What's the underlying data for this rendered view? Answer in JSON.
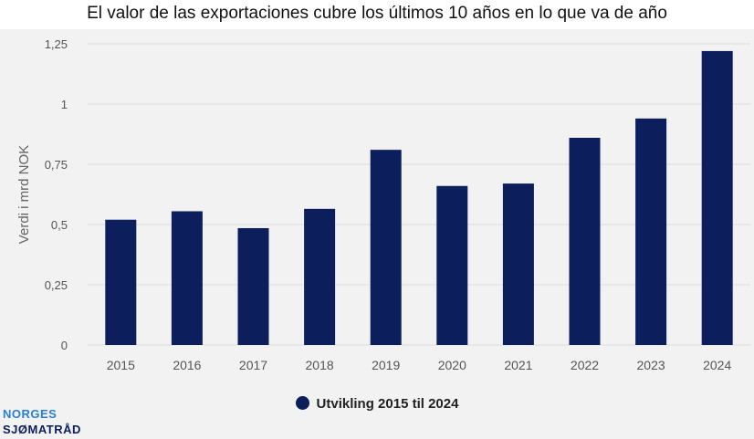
{
  "title": "El valor de las exportaciones cubre los últimos 10 años en lo que va de año",
  "logo": {
    "line1": "NORGES",
    "line2": "SJØMATRÅD"
  },
  "colors": {
    "bar": "#0c1f5c",
    "grid": "#dcdcdc",
    "tick": "#555555",
    "background": "#f2f2f2"
  },
  "chart_data": {
    "type": "bar",
    "categories": [
      "2015",
      "2016",
      "2017",
      "2018",
      "2019",
      "2020",
      "2021",
      "2022",
      "2023",
      "2024"
    ],
    "series": [
      {
        "name": "Utvikling 2015 til 2024",
        "values": [
          0.52,
          0.555,
          0.485,
          0.565,
          0.81,
          0.66,
          0.67,
          0.86,
          0.94,
          1.22
        ]
      }
    ],
    "ylabel": "Verdi i mrd NOK",
    "xlabel": "",
    "ylim": [
      0,
      1.25
    ],
    "yticks": [
      0,
      0.25,
      0.5,
      0.75,
      1,
      1.25
    ],
    "ytick_labels": [
      "0",
      "0,25",
      "0,5",
      "0,75",
      "1",
      "1,25"
    ],
    "grid": true,
    "legend": "bottom"
  }
}
